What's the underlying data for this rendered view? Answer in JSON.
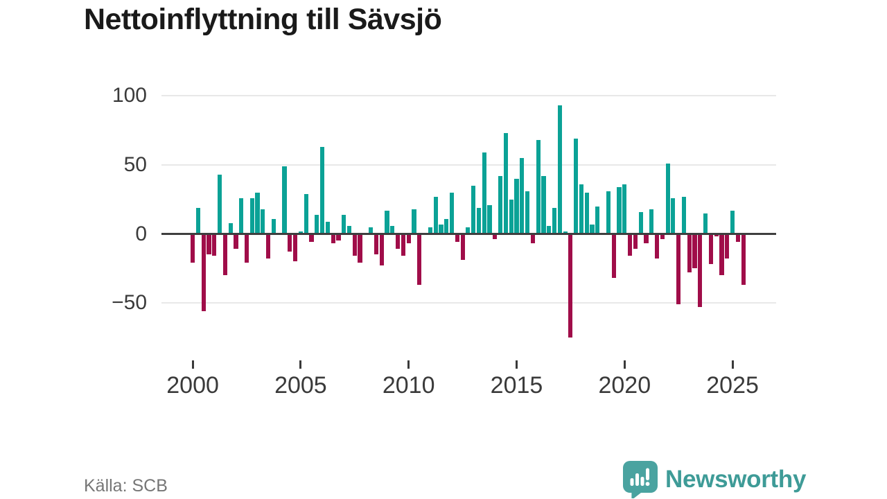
{
  "title": "Nettoinflyttning till Sävsjö",
  "source": "Källa: SCB",
  "logo": {
    "text": "Newsworthy"
  },
  "colors": {
    "positive_bar": "#0ba296",
    "negative_bar": "#a00d49",
    "axis_text": "#3a3a3a",
    "zero_line": "#3f3f3f",
    "gridline": "#e8e8e8",
    "source_text": "#767676",
    "logo_teal": "#4aa3a0",
    "logo_text_teal": "#3e9b97"
  },
  "chart_data": {
    "type": "bar",
    "title": "Nettoinflyttning till Sävsjö",
    "frequency": "quarterly",
    "start_period": "2000 Q1",
    "end_period": "2025 Q3",
    "values": [
      -21,
      19,
      -56,
      -15,
      -16,
      43,
      -30,
      8,
      -11,
      26,
      -21,
      26,
      30,
      18,
      -18,
      11,
      0,
      49,
      -13,
      -20,
      2,
      29,
      -6,
      14,
      63,
      9,
      -7,
      -5,
      14,
      6,
      -16,
      -21,
      0,
      5,
      -15,
      -23,
      17,
      6,
      -11,
      -16,
      -7,
      18,
      -37,
      0,
      5,
      27,
      7,
      11,
      30,
      -6,
      -19,
      5,
      35,
      19,
      59,
      21,
      -4,
      42,
      73,
      25,
      40,
      55,
      31,
      -7,
      68,
      42,
      6,
      19,
      93,
      2,
      -75,
      69,
      36,
      30,
      7,
      20,
      0,
      31,
      -32,
      34,
      36,
      -16,
      -11,
      16,
      -7,
      18,
      -18,
      -4,
      51,
      26,
      -51,
      27,
      -28,
      -25,
      -53,
      15,
      -22,
      -2,
      -30,
      -18,
      17,
      -6,
      -37
    ],
    "y_ticks": [
      100,
      50,
      0,
      -50
    ],
    "x_tick_labels": [
      "2000",
      "2005",
      "2010",
      "2015",
      "2020",
      "2025"
    ],
    "x_tick_quarter_indices": [
      0,
      20,
      40,
      60,
      80,
      100
    ],
    "ylim": [
      -85,
      105
    ],
    "grid": true,
    "legend": "none"
  }
}
